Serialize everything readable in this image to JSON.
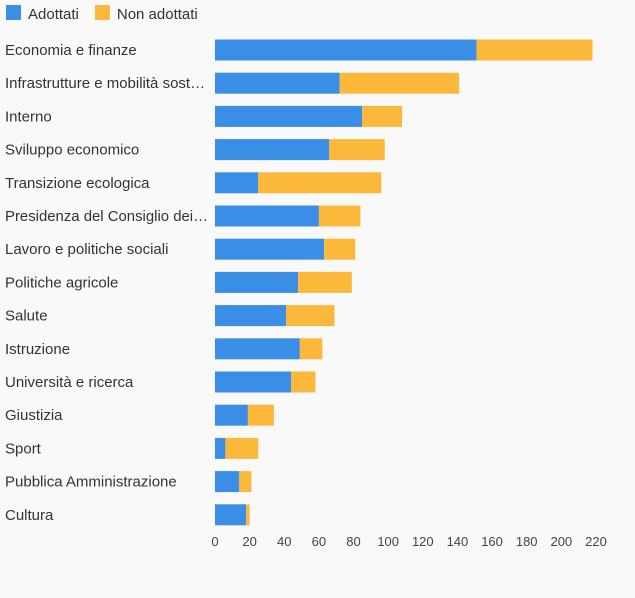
{
  "chart_data": {
    "type": "bar",
    "orientation": "horizontal",
    "stacked": true,
    "legend_position": "top-left",
    "grid": false,
    "categories": [
      "Economia e finanze",
      "Infrastrutture e mobilità sost…",
      "Interno",
      "Sviluppo economico",
      "Transizione ecologica",
      "Presidenza del Consiglio dei…",
      "Lavoro e politiche sociali",
      "Politiche agricole",
      "Salute",
      "Istruzione",
      "Università e ricerca",
      "Giustizia",
      "Sport",
      "Pubblica Amministrazione",
      "Cultura"
    ],
    "series": [
      {
        "name": "Adottati",
        "color": "#3a8ee6",
        "values": [
          151,
          72,
          85,
          66,
          25,
          60,
          63,
          48,
          41,
          49,
          44,
          19,
          6,
          14,
          18
        ]
      },
      {
        "name": "Non adottati",
        "color": "#fbb83b",
        "values": [
          67,
          69,
          23,
          32,
          71,
          24,
          18,
          31,
          28,
          13,
          14,
          15,
          19,
          7,
          2
        ]
      }
    ],
    "xlim": [
      0,
      220
    ],
    "xticks": [
      0,
      20,
      40,
      60,
      80,
      100,
      120,
      140,
      160,
      180,
      200,
      220
    ],
    "xlabel": "",
    "ylabel": ""
  }
}
